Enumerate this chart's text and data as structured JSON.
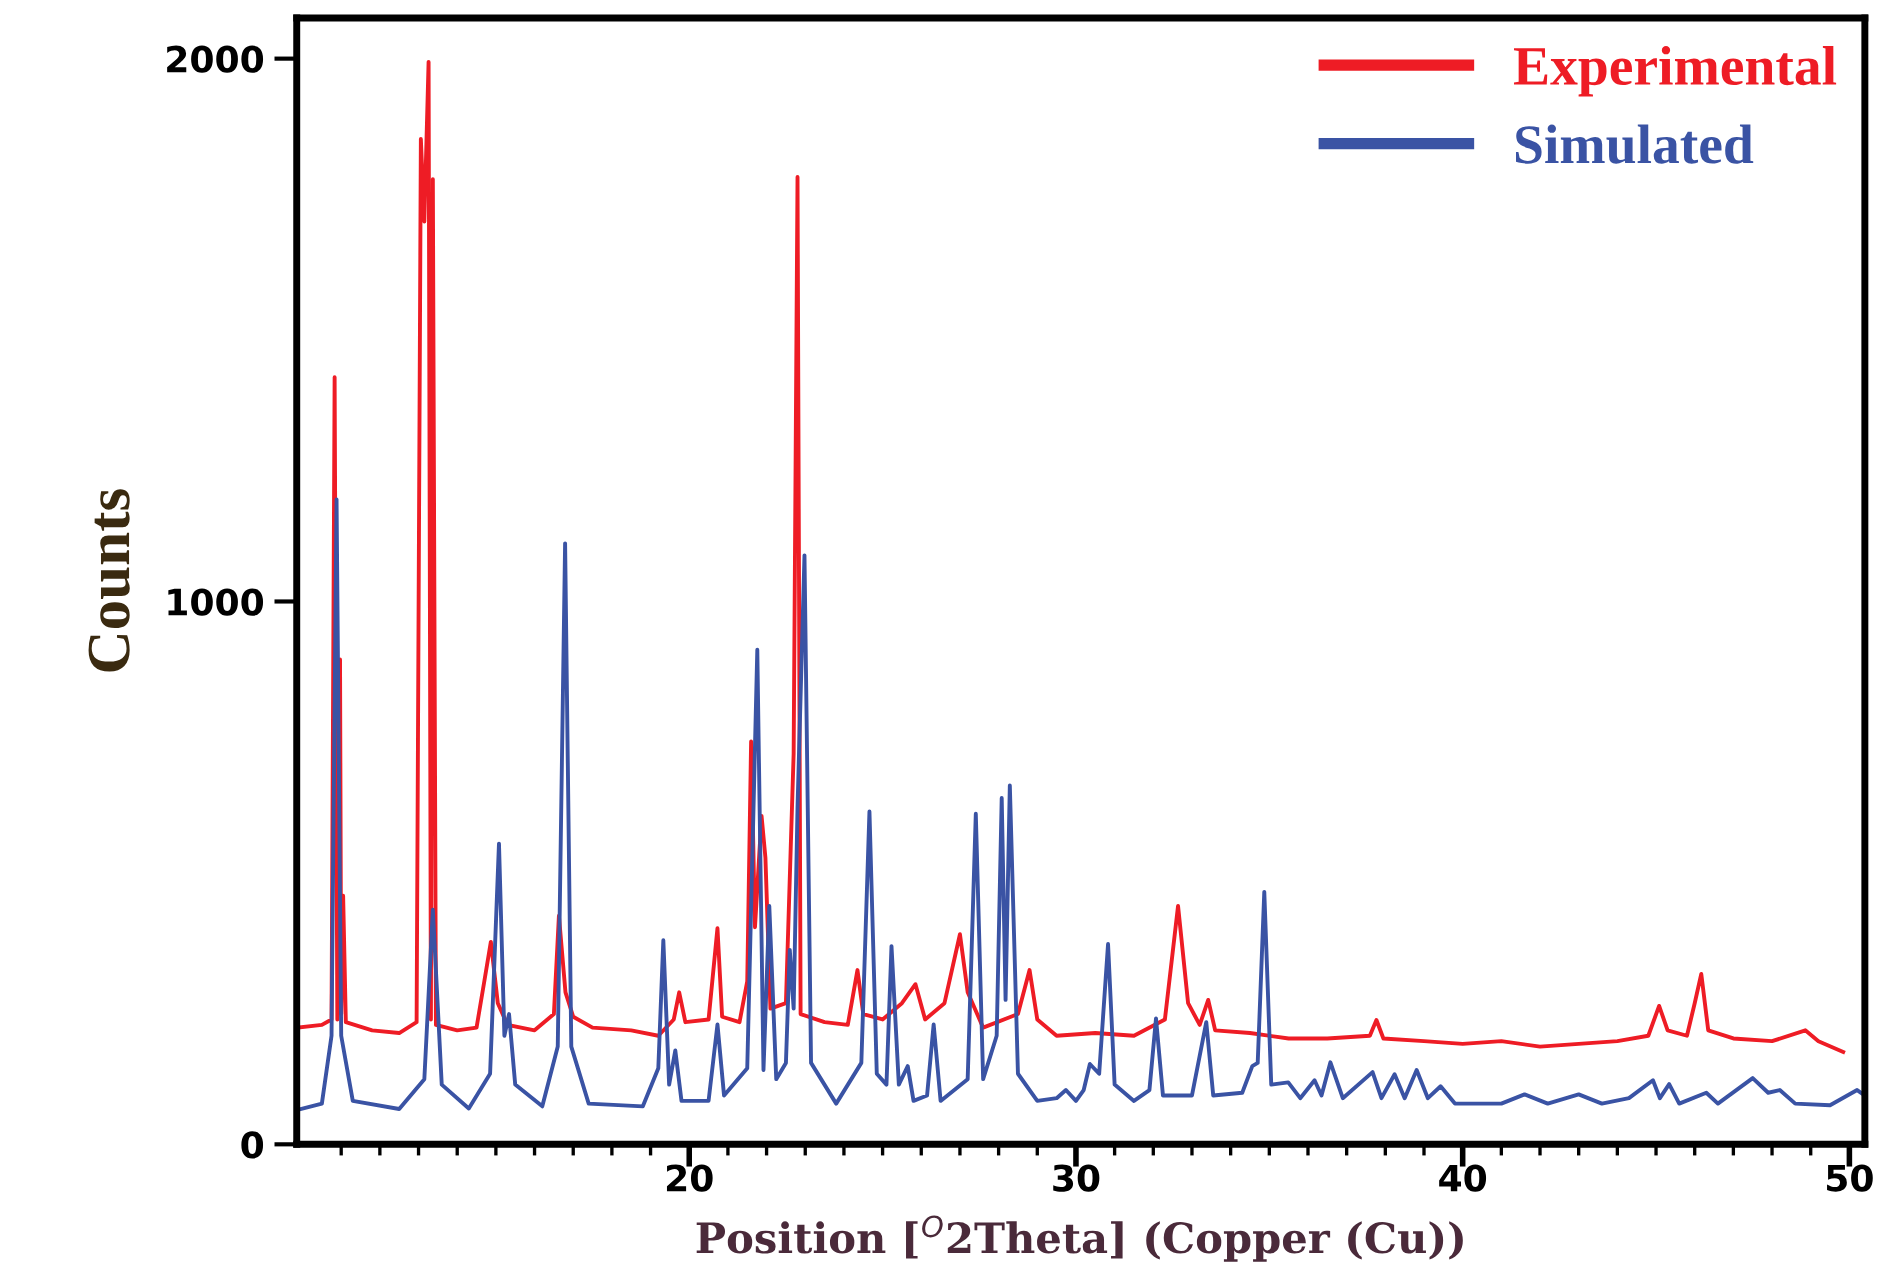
{
  "chart_data": {
    "type": "line",
    "xlabel": "Position [$^{O}$2Theta] (Copper (Cu))",
    "ylabel": "Counts",
    "xlim": [
      9.85,
      50.4
    ],
    "ylim": [
      0,
      2075
    ],
    "xticks": [
      {
        "value": 11,
        "label": null
      },
      {
        "value": 12,
        "label": null
      },
      {
        "value": 13,
        "label": null
      },
      {
        "value": 14,
        "label": null
      },
      {
        "value": 15,
        "label": null
      },
      {
        "value": 16,
        "label": null
      },
      {
        "value": 17,
        "label": null
      },
      {
        "value": 18,
        "label": null
      },
      {
        "value": 19,
        "label": null
      },
      20,
      {
        "value": 21,
        "label": null
      },
      {
        "value": 22,
        "label": null
      },
      {
        "value": 23,
        "label": null
      },
      {
        "value": 24,
        "label": null
      },
      {
        "value": 25,
        "label": null
      },
      {
        "value": 26,
        "label": null
      },
      {
        "value": 27,
        "label": null
      },
      {
        "value": 28,
        "label": null
      },
      {
        "value": 29,
        "label": null
      },
      30,
      {
        "value": 31,
        "label": null
      },
      {
        "value": 32,
        "label": null
      },
      {
        "value": 33,
        "label": null
      },
      {
        "value": 34,
        "label": null
      },
      {
        "value": 35,
        "label": null
      },
      {
        "value": 36,
        "label": null
      },
      {
        "value": 37,
        "label": null
      },
      {
        "value": 38,
        "label": null
      },
      {
        "value": 39,
        "label": null
      },
      40,
      {
        "value": 41,
        "label": null
      },
      {
        "value": 42,
        "label": null
      },
      {
        "value": 43,
        "label": null
      },
      {
        "value": 44,
        "label": null
      },
      {
        "value": 45,
        "label": null
      },
      {
        "value": 46,
        "label": null
      },
      {
        "value": 47,
        "label": null
      },
      {
        "value": 48,
        "label": null
      },
      {
        "value": 49,
        "label": null
      },
      50
    ],
    "yticks": [
      0,
      1000,
      2000
    ],
    "grid": false,
    "legend": "top right",
    "marker": "none",
    "line_style": "solid",
    "series": [
      {
        "name": "Experimental",
        "color": "#ee1c25",
        "x": [
          9.85,
          10.5,
          10.75,
          10.83,
          10.9,
          10.97,
          11.0,
          11.05,
          11.12,
          11.8,
          12.5,
          12.95,
          13.06,
          13.15,
          13.26,
          13.32,
          13.37,
          13.45,
          14.0,
          14.5,
          14.7,
          14.87,
          15.05,
          15.3,
          16.0,
          16.5,
          16.63,
          16.8,
          17.0,
          17.5,
          18.5,
          19.2,
          19.6,
          19.74,
          19.9,
          20.5,
          20.73,
          20.85,
          21.3,
          21.5,
          21.6,
          21.7,
          21.87,
          21.97,
          22.1,
          22.5,
          22.7,
          22.8,
          22.88,
          23.5,
          24.1,
          24.35,
          24.5,
          25.0,
          25.5,
          25.85,
          26.1,
          26.6,
          27.0,
          27.2,
          27.6,
          28.5,
          28.8,
          29.0,
          29.5,
          30.5,
          31.5,
          32.3,
          32.64,
          32.9,
          33.2,
          33.42,
          33.6,
          34.5,
          35.5,
          36.5,
          37.6,
          37.77,
          37.95,
          39.0,
          40.0,
          41.0,
          42.0,
          43.0,
          44.0,
          44.8,
          45.08,
          45.3,
          45.8,
          46.0,
          46.17,
          46.35,
          47.0,
          48.0,
          48.86,
          49.2,
          49.84
        ],
        "values": [
          215,
          220,
          230,
          1413,
          230,
          893,
          240,
          458,
          225,
          210,
          205,
          225,
          1852,
          1700,
          1994,
          230,
          1778,
          220,
          210,
          215,
          300,
          373,
          260,
          220,
          210,
          240,
          421,
          280,
          235,
          215,
          210,
          200,
          230,
          280,
          225,
          230,
          398,
          235,
          225,
          300,
          742,
          400,
          605,
          528,
          250,
          260,
          720,
          1782,
          240,
          225,
          220,
          321,
          240,
          230,
          260,
          295,
          230,
          260,
          387,
          280,
          215,
          240,
          321,
          230,
          200,
          205,
          200,
          230,
          439,
          260,
          220,
          266,
          210,
          205,
          195,
          195,
          200,
          229,
          195,
          190,
          185,
          190,
          180,
          185,
          190,
          200,
          255,
          210,
          200,
          260,
          314,
          210,
          195,
          190,
          210,
          190,
          170
        ]
      },
      {
        "name": "Simulated",
        "color": "#3a53a4",
        "x": [
          9.85,
          10.5,
          10.75,
          10.88,
          11.0,
          11.3,
          12.5,
          13.15,
          13.37,
          13.6,
          14.3,
          14.85,
          15.08,
          15.22,
          15.34,
          15.5,
          16.2,
          16.6,
          16.79,
          16.95,
          17.4,
          18.8,
          19.2,
          19.33,
          19.48,
          19.64,
          19.8,
          20.5,
          20.73,
          20.9,
          21.5,
          21.76,
          21.92,
          22.07,
          22.25,
          22.5,
          22.6,
          22.7,
          22.8,
          22.98,
          23.15,
          23.8,
          24.45,
          24.66,
          24.85,
          25.1,
          25.23,
          25.42,
          25.65,
          25.8,
          26.15,
          26.32,
          26.5,
          27.2,
          27.41,
          27.6,
          27.95,
          28.08,
          28.18,
          28.29,
          28.5,
          29.0,
          29.5,
          29.74,
          30.0,
          30.2,
          30.36,
          30.6,
          30.83,
          31.0,
          31.5,
          31.9,
          32.07,
          32.25,
          33.0,
          33.37,
          33.55,
          34.3,
          34.56,
          34.7,
          34.87,
          35.05,
          35.49,
          35.8,
          36.17,
          36.35,
          36.58,
          36.9,
          37.67,
          37.9,
          38.24,
          38.5,
          38.81,
          39.1,
          39.43,
          39.8,
          41.0,
          41.6,
          42.2,
          43.0,
          43.6,
          44.3,
          44.92,
          45.1,
          45.34,
          45.6,
          46.3,
          46.6,
          47.5,
          47.9,
          48.2,
          48.6,
          49.5,
          50.2,
          50.4
        ],
        "values": [
          63,
          75,
          200,
          1188,
          200,
          80,
          65,
          120,
          432,
          110,
          66,
          130,
          554,
          200,
          240,
          110,
          70,
          180,
          1107,
          180,
          75,
          70,
          140,
          376,
          110,
          173,
          80,
          80,
          221,
          90,
          140,
          911,
          137,
          439,
          120,
          150,
          358,
          250,
          620,
          1085,
          150,
          75,
          150,
          613,
          130,
          110,
          365,
          110,
          144,
          80,
          90,
          221,
          80,
          120,
          609,
          120,
          200,
          638,
          266,
          661,
          130,
          80,
          85,
          100,
          80,
          100,
          148,
          130,
          369,
          110,
          80,
          100,
          232,
          90,
          90,
          225,
          90,
          95,
          144,
          150,
          465,
          110,
          114,
          85,
          118,
          90,
          151,
          85,
          133,
          85,
          129,
          85,
          137,
          85,
          107,
          75,
          75,
          92,
          75,
          92,
          75,
          85,
          118,
          85,
          111,
          75,
          95,
          75,
          122,
          95,
          100,
          75,
          72,
          100,
          90
        ]
      }
    ]
  }
}
